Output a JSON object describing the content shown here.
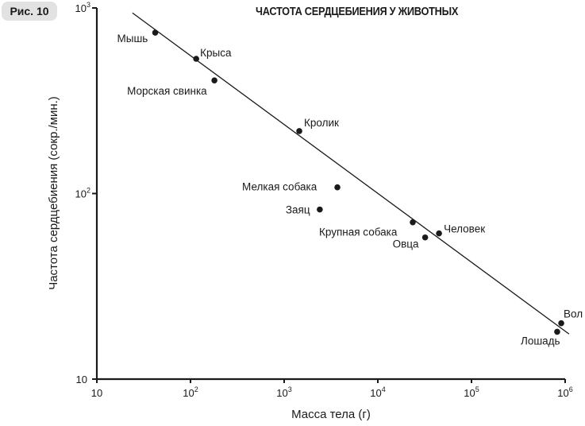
{
  "figure": {
    "badge": "Рис. 10"
  },
  "chart_data": {
    "type": "scatter",
    "title": "ЧАСТОТА СЕРДЦЕБИЕНИЯ У ЖИВОТНЫХ",
    "xlabel": "Масса тела (г)",
    "ylabel": "Частота сердцебиения (сокр./мин.)",
    "xscale": "log",
    "yscale": "log",
    "xlim": [
      10,
      1000000
    ],
    "ylim": [
      10,
      1000
    ],
    "x_ticks": [
      {
        "value": 10,
        "base": "10",
        "exp": ""
      },
      {
        "value": 100,
        "base": "10",
        "exp": "2"
      },
      {
        "value": 1000,
        "base": "10",
        "exp": "3"
      },
      {
        "value": 10000,
        "base": "10",
        "exp": "4"
      },
      {
        "value": 100000,
        "base": "10",
        "exp": "5"
      },
      {
        "value": 1000000,
        "base": "10",
        "exp": "6"
      }
    ],
    "y_ticks": [
      {
        "value": 10,
        "base": "10",
        "exp": ""
      },
      {
        "value": 100,
        "base": "10",
        "exp": "2"
      },
      {
        "value": 1000,
        "base": "10",
        "exp": "3"
      }
    ],
    "grid": false,
    "legend": null,
    "points": [
      {
        "label": "Мышь",
        "mass_g": 42,
        "heart_rate": 736
      },
      {
        "label": "Крыса",
        "mass_g": 115,
        "heart_rate": 532
      },
      {
        "label": "Морская свинка",
        "mass_g": 180,
        "heart_rate": 407
      },
      {
        "label": "Кролик",
        "mass_g": 1450,
        "heart_rate": 217
      },
      {
        "label": "Мелкая собака",
        "mass_g": 3700,
        "heart_rate": 108
      },
      {
        "label": "Заяц",
        "mass_g": 2400,
        "heart_rate": 82
      },
      {
        "label": "Крупная собака",
        "mass_g": 23600,
        "heart_rate": 70
      },
      {
        "label": "Овца",
        "mass_g": 32000,
        "heart_rate": 58
      },
      {
        "label": "Человек",
        "mass_g": 45000,
        "heart_rate": 61
      },
      {
        "label": "Лошадь",
        "mass_g": 822000,
        "heart_rate": 18
      },
      {
        "label": "Вол",
        "mass_g": 908000,
        "heart_rate": 20
      }
    ],
    "trend_line": {
      "from": {
        "mass_g": 24,
        "heart_rate": 940
      },
      "to": {
        "mass_g": 1100000,
        "heart_rate": 17.5
      }
    }
  }
}
